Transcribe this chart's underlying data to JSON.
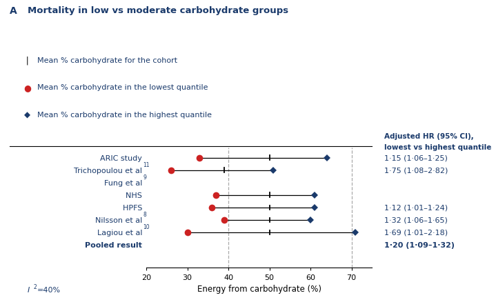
{
  "title_letter": "A",
  "title_text": "Mortality in low vs moderate carbohydrate groups",
  "legend_items": [
    {
      "label": "Mean % carbohydrate for the cohort",
      "type": "tick"
    },
    {
      "label": "Mean % carbohydrate in the lowest quantile",
      "type": "red_dot"
    },
    {
      "label": "Mean % carbohydrate in the highest quantile",
      "type": "blue_diamond"
    }
  ],
  "col_header": "Adjusted HR (95% CI),\nlowest vs highest quantile",
  "studies": [
    {
      "label": "ARIC study",
      "superscript": "",
      "bold": false,
      "indent": false,
      "red_dot": 33,
      "cohort_tick": 50,
      "blue_diamond": 64,
      "hr_text": "1·15 (1·06–1·25)",
      "show_hr": true
    },
    {
      "label": "Trichopoulou et al",
      "superscript": "11",
      "bold": false,
      "indent": false,
      "red_dot": 26,
      "cohort_tick": 39,
      "blue_diamond": 51,
      "hr_text": "1·75 (1·08–2·82)",
      "show_hr": true
    },
    {
      "label": "Fung et al",
      "superscript": "9",
      "bold": false,
      "indent": false,
      "red_dot": null,
      "cohort_tick": null,
      "blue_diamond": null,
      "hr_text": "",
      "show_hr": false
    },
    {
      "label": "NHS",
      "superscript": "",
      "bold": false,
      "indent": true,
      "red_dot": 37,
      "cohort_tick": 50,
      "blue_diamond": 61,
      "hr_text": "",
      "show_hr": false
    },
    {
      "label": "HPFS",
      "superscript": "",
      "bold": false,
      "indent": true,
      "red_dot": 36,
      "cohort_tick": 50,
      "blue_diamond": 61,
      "hr_text": "1·12 (1·01–1·24)",
      "show_hr": true
    },
    {
      "label": "Nilsson et al",
      "superscript": "8",
      "bold": false,
      "indent": false,
      "red_dot": 39,
      "cohort_tick": 50,
      "blue_diamond": 60,
      "hr_text": "1·32 (1·06–1·65)",
      "show_hr": true
    },
    {
      "label": "Lagiou et al",
      "superscript": "10",
      "bold": false,
      "indent": false,
      "red_dot": 30,
      "cohort_tick": 50,
      "blue_diamond": 71,
      "hr_text": "1·69 (1·01–2·18)",
      "show_hr": true
    },
    {
      "label": "Pooled result",
      "superscript": "",
      "bold": true,
      "indent": false,
      "red_dot": null,
      "cohort_tick": null,
      "blue_diamond": null,
      "hr_text": "1·20 (1·09–1·32)",
      "show_hr": true
    }
  ],
  "xmin": 20,
  "xmax": 75,
  "xticks": [
    20,
    30,
    40,
    50,
    60,
    70
  ],
  "xlabel": "Energy from carbohydrate (%)",
  "dashed_lines": [
    40,
    70
  ],
  "red_color": "#cc2222",
  "blue_color": "#1a3a6b",
  "text_color": "#1a3a6b",
  "background_color": "#ffffff"
}
